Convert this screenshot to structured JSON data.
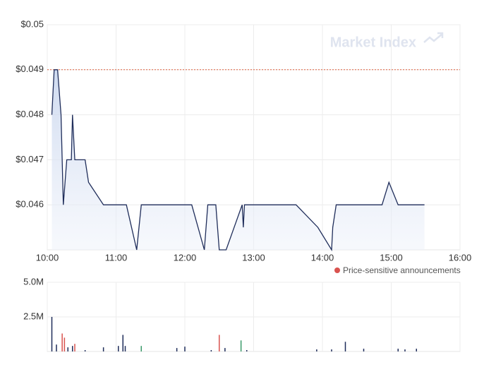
{
  "chart_data": [
    {
      "type": "area",
      "watermark": "Market Index",
      "x": [
        "10:04",
        "10:06",
        "10:09",
        "10:12",
        "10:14",
        "10:17",
        "10:21",
        "10:22",
        "10:24",
        "10:33",
        "10:36",
        "10:49",
        "11:09",
        "11:18",
        "11:22",
        "12:06",
        "12:17",
        "12:20",
        "12:27",
        "12:30",
        "12:36",
        "12:50",
        "12:51",
        "12:52",
        "13:37",
        "13:56",
        "14:08",
        "14:09",
        "14:12",
        "14:52",
        "14:58",
        "15:06",
        "15:29"
      ],
      "series": [
        {
          "color": "#1f2d5a",
          "values": [
            0.048,
            0.049,
            0.049,
            0.048,
            0.046,
            0.047,
            0.047,
            0.048,
            0.047,
            0.047,
            0.0465,
            0.046,
            0.046,
            0.045,
            0.046,
            0.046,
            0.045,
            0.046,
            0.046,
            0.045,
            0.045,
            0.046,
            0.0455,
            0.046,
            0.046,
            0.0455,
            0.045,
            0.0455,
            0.046,
            0.046,
            0.0465,
            0.046,
            0.046
          ]
        }
      ],
      "xlim": [
        "10:00",
        "16:00"
      ],
      "xticks": [
        "10:00",
        "11:00",
        "12:00",
        "13:00",
        "14:00",
        "15:00",
        "16:00"
      ],
      "ylim": [
        0.045,
        0.05
      ],
      "yticks": [
        {
          "value": 0.046,
          "label": "$0.046"
        },
        {
          "value": 0.047,
          "label": "$0.047"
        },
        {
          "value": 0.048,
          "label": "$0.048"
        },
        {
          "value": 0.049,
          "label": "$0.049"
        },
        {
          "value": 0.05,
          "label": "$0.05"
        }
      ],
      "reference_line": {
        "value": 0.049,
        "color": "#e0603c"
      },
      "legend": {
        "label": "Price-sensitive announcements",
        "color": "#d9534f"
      },
      "grid": true
    },
    {
      "type": "bar",
      "x": [
        "10:04",
        "10:08",
        "10:13",
        "10:15",
        "10:18",
        "10:22",
        "10:24",
        "10:33",
        "10:49",
        "11:02",
        "11:06",
        "11:08",
        "11:22",
        "11:53",
        "12:00",
        "12:23",
        "12:30",
        "12:35",
        "12:49",
        "12:54",
        "13:55",
        "14:08",
        "14:20",
        "14:36",
        "15:06",
        "15:12",
        "15:22"
      ],
      "values": [
        2500000,
        500000,
        1300000,
        1000000,
        300000,
        400000,
        550000,
        100000,
        300000,
        400000,
        1200000,
        400000,
        400000,
        250000,
        350000,
        100000,
        1200000,
        250000,
        800000,
        100000,
        150000,
        150000,
        700000,
        200000,
        200000,
        150000,
        200000
      ],
      "colors": [
        "#1f2d5a",
        "#1f2d5a",
        "#d9534f",
        "#d9534f",
        "#1f2d5a",
        "#1f2d5a",
        "#d9534f",
        "#1f2d5a",
        "#1f2d5a",
        "#1f2d5a",
        "#1f2d5a",
        "#1f2d5a",
        "#3a9a6a",
        "#1f2d5a",
        "#1f2d5a",
        "#1f2d5a",
        "#d9534f",
        "#1f2d5a",
        "#3a9a6a",
        "#1f2d5a",
        "#1f2d5a",
        "#1f2d5a",
        "#1f2d5a",
        "#1f2d5a",
        "#1f2d5a",
        "#1f2d5a",
        "#1f2d5a"
      ],
      "xlim": [
        "10:00",
        "16:00"
      ],
      "ylim": [
        0,
        5000000
      ],
      "yticks": [
        {
          "value": 2500000,
          "label": "2.5M"
        },
        {
          "value": 5000000,
          "label": "5.0M"
        }
      ],
      "grid": true
    }
  ]
}
